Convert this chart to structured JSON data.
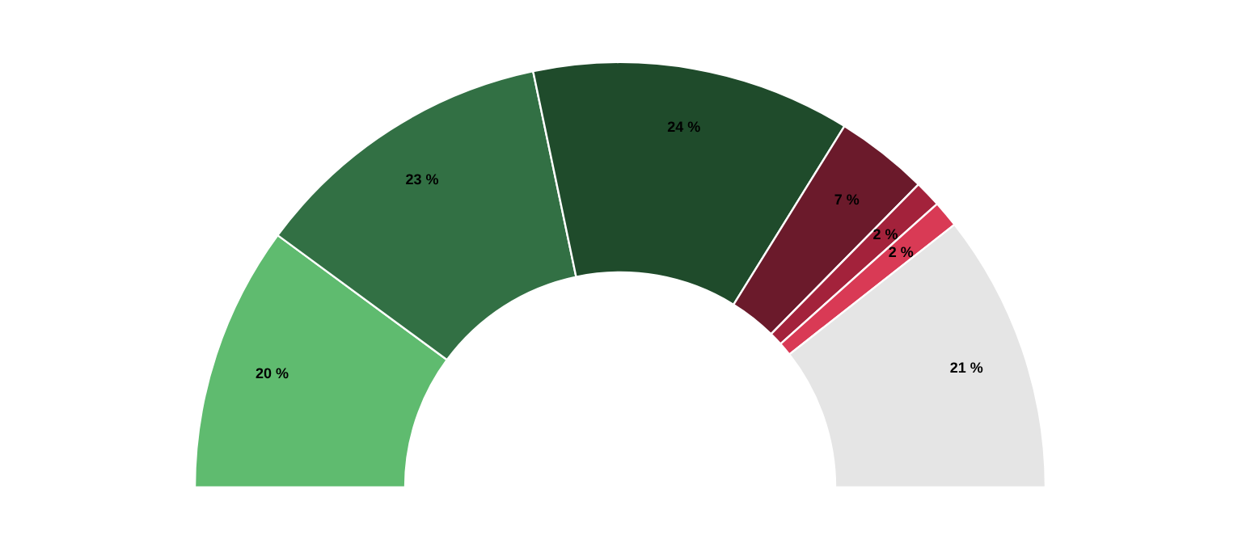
{
  "chart_data": {
    "type": "donut",
    "categories": [
      null,
      null,
      null,
      null,
      null,
      null,
      null
    ],
    "values": [
      20,
      23,
      24,
      7,
      2,
      2,
      21
    ],
    "colors": [
      "#5fbb6f",
      "#327044",
      "#1f4b2b",
      "#6b1a2b",
      "#a3223b",
      "#d93a55",
      "#e5e5e5"
    ],
    "value_labels": [
      "20 %",
      "23 %",
      "24 %",
      "7 %",
      "2 %",
      "2 %",
      "21 %"
    ]
  }
}
